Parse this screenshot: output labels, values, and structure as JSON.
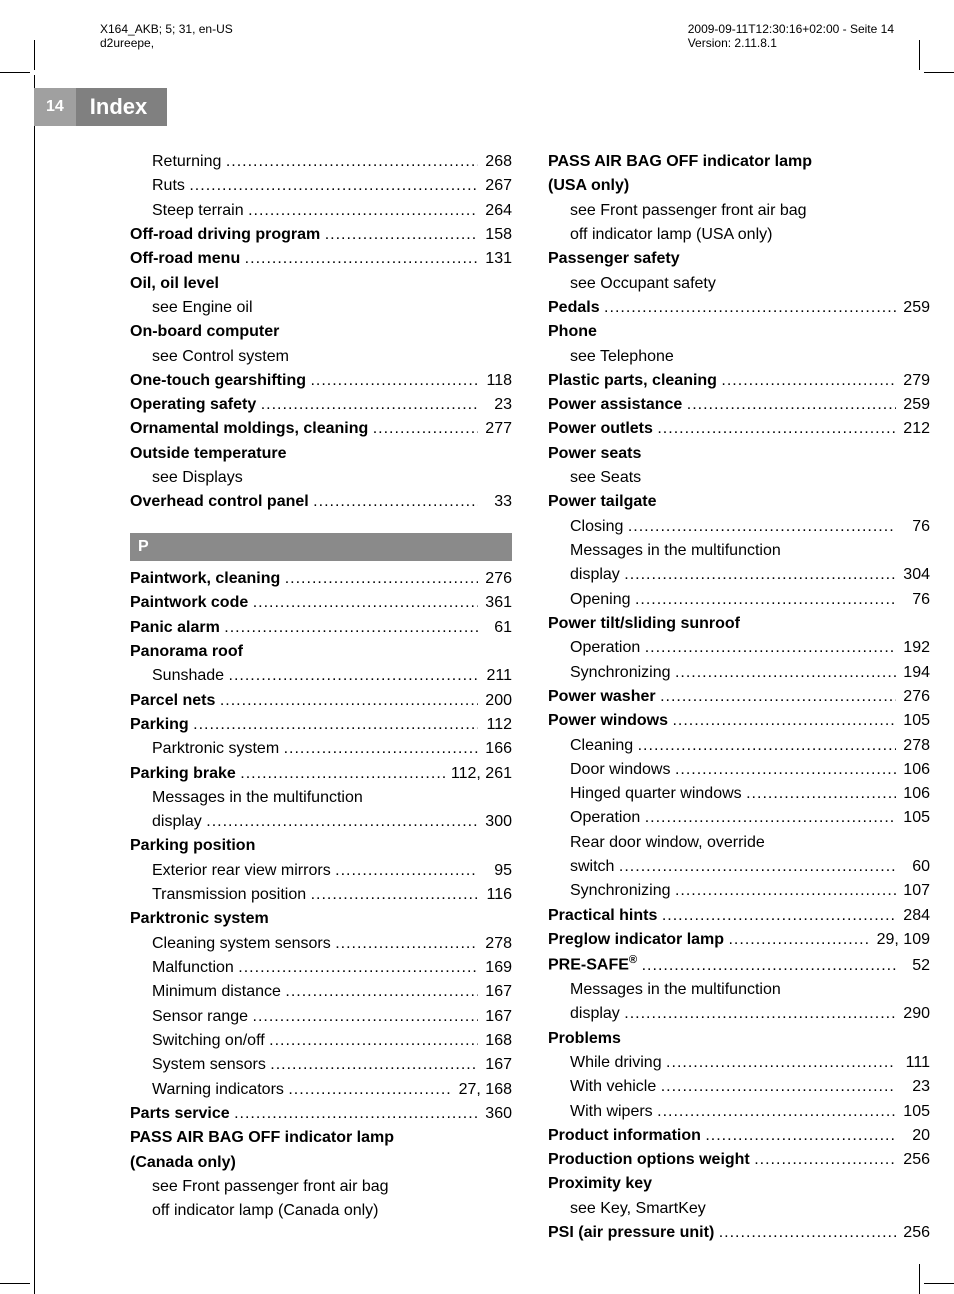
{
  "header": {
    "doc_id_line1": "X164_AKB; 5; 31, en-US",
    "doc_id_line2": "d2ureepe,",
    "timestamp": "2009-09-11T12:30:16+02:00 - Seite 14",
    "version_label": "Version: 2.11.8.1",
    "page_number": "14",
    "title": "Index"
  },
  "left_column": [
    {
      "type": "sub",
      "label": "Returning",
      "page": "268"
    },
    {
      "type": "sub",
      "label": "Ruts",
      "page": "267"
    },
    {
      "type": "sub",
      "label": "Steep terrain",
      "page": "264"
    },
    {
      "type": "top",
      "bold": true,
      "label": "Off-road driving program",
      "page": "158"
    },
    {
      "type": "top",
      "bold": true,
      "label": "Off-road menu",
      "page": "131"
    },
    {
      "type": "top",
      "bold": true,
      "label": "Oil, oil level",
      "nopage": true
    },
    {
      "type": "sub",
      "label": "see Engine oil",
      "nopage": true
    },
    {
      "type": "top",
      "bold": true,
      "label": "On-board computer",
      "nopage": true
    },
    {
      "type": "sub",
      "label": "see Control system",
      "nopage": true
    },
    {
      "type": "top",
      "bold": true,
      "label": "One-touch gearshifting",
      "page": "118"
    },
    {
      "type": "top",
      "bold": true,
      "label": "Operating safety",
      "page": "23"
    },
    {
      "type": "top",
      "bold": true,
      "label": "Ornamental moldings, cleaning",
      "page": "277"
    },
    {
      "type": "top",
      "bold": true,
      "label": "Outside temperature",
      "nopage": true
    },
    {
      "type": "sub",
      "label": "see Displays",
      "nopage": true
    },
    {
      "type": "top",
      "bold": true,
      "label": "Overhead control panel",
      "page": "33"
    },
    {
      "type": "section",
      "label": "P"
    },
    {
      "type": "top",
      "bold": true,
      "label": "Paintwork, cleaning",
      "page": "276"
    },
    {
      "type": "top",
      "bold": true,
      "label": "Paintwork code",
      "page": "361"
    },
    {
      "type": "top",
      "bold": true,
      "label": "Panic alarm",
      "page": "61"
    },
    {
      "type": "top",
      "bold": true,
      "label": "Panorama roof",
      "nopage": true
    },
    {
      "type": "sub",
      "label": "Sunshade",
      "page": "211"
    },
    {
      "type": "top",
      "bold": true,
      "label": "Parcel nets",
      "page": "200"
    },
    {
      "type": "top",
      "bold": true,
      "label": "Parking",
      "page": "112"
    },
    {
      "type": "sub",
      "label": "Parktronic system",
      "page": "166"
    },
    {
      "type": "top",
      "bold": true,
      "label": "Parking brake",
      "page": "112, 261"
    },
    {
      "type": "sub",
      "label": "Messages in the multifunction",
      "nopage": true
    },
    {
      "type": "sub",
      "label": "display",
      "page": "300"
    },
    {
      "type": "top",
      "bold": true,
      "label": "Parking position",
      "nopage": true
    },
    {
      "type": "sub",
      "label": "Exterior rear view mirrors",
      "page": "95"
    },
    {
      "type": "sub",
      "label": "Transmission position",
      "page": "116"
    },
    {
      "type": "top",
      "bold": true,
      "label": "Parktronic system",
      "nopage": true
    },
    {
      "type": "sub",
      "label": "Cleaning system sensors",
      "page": "278"
    },
    {
      "type": "sub",
      "label": "Malfunction",
      "page": "169"
    },
    {
      "type": "sub",
      "label": "Minimum distance",
      "page": "167"
    },
    {
      "type": "sub",
      "label": "Sensor range",
      "page": "167"
    },
    {
      "type": "sub",
      "label": "Switching on/off",
      "page": "168"
    },
    {
      "type": "sub",
      "label": "System sensors",
      "page": "167"
    },
    {
      "type": "sub",
      "label": "Warning indicators",
      "page": "27, 168"
    },
    {
      "type": "top",
      "bold": true,
      "label": "Parts service",
      "page": "360"
    },
    {
      "type": "top",
      "bold": true,
      "label": "PASS AIR BAG OFF indicator lamp",
      "nopage": true
    },
    {
      "type": "top",
      "bold": true,
      "label": "(Canada only)",
      "nopage": true
    },
    {
      "type": "sub",
      "label": "see Front passenger front air bag",
      "nopage": true
    },
    {
      "type": "sub",
      "label": "off indicator lamp (Canada only)",
      "nopage": true
    }
  ],
  "right_column": [
    {
      "type": "top",
      "bold": true,
      "label": "PASS AIR BAG OFF indicator lamp",
      "nopage": true
    },
    {
      "type": "top",
      "bold": true,
      "label": "(USA only)",
      "nopage": true
    },
    {
      "type": "sub",
      "label": "see Front passenger front air bag",
      "nopage": true
    },
    {
      "type": "sub",
      "label": "off indicator lamp (USA only)",
      "nopage": true
    },
    {
      "type": "top",
      "bold": true,
      "label": "Passenger safety",
      "nopage": true
    },
    {
      "type": "sub",
      "label": "see Occupant safety",
      "nopage": true
    },
    {
      "type": "top",
      "bold": true,
      "label": "Pedals",
      "page": "259"
    },
    {
      "type": "top",
      "bold": true,
      "label": "Phone",
      "nopage": true
    },
    {
      "type": "sub",
      "label": "see Telephone",
      "nopage": true
    },
    {
      "type": "top",
      "bold": true,
      "label": "Plastic parts, cleaning",
      "page": "279"
    },
    {
      "type": "top",
      "bold": true,
      "label": "Power assistance",
      "page": "259"
    },
    {
      "type": "top",
      "bold": true,
      "label": "Power outlets",
      "page": "212"
    },
    {
      "type": "top",
      "bold": true,
      "label": "Power seats",
      "nopage": true
    },
    {
      "type": "sub",
      "label": "see Seats",
      "nopage": true
    },
    {
      "type": "top",
      "bold": true,
      "label": "Power tailgate",
      "nopage": true
    },
    {
      "type": "sub",
      "label": "Closing",
      "page": "76"
    },
    {
      "type": "sub",
      "label": "Messages in the multifunction",
      "nopage": true
    },
    {
      "type": "sub",
      "label": "display",
      "page": "304"
    },
    {
      "type": "sub",
      "label": "Opening",
      "page": "76"
    },
    {
      "type": "top",
      "bold": true,
      "label": "Power tilt/sliding sunroof",
      "nopage": true
    },
    {
      "type": "sub",
      "label": "Operation",
      "page": "192"
    },
    {
      "type": "sub",
      "label": "Synchronizing",
      "page": "194"
    },
    {
      "type": "top",
      "bold": true,
      "label": "Power washer",
      "page": "276"
    },
    {
      "type": "top",
      "bold": true,
      "label": "Power windows",
      "page": "105"
    },
    {
      "type": "sub",
      "label": "Cleaning",
      "page": "278"
    },
    {
      "type": "sub",
      "label": "Door windows",
      "page": "106"
    },
    {
      "type": "sub",
      "label": "Hinged quarter windows",
      "page": "106"
    },
    {
      "type": "sub",
      "label": "Operation",
      "page": "105"
    },
    {
      "type": "sub",
      "label": "Rear door window, override",
      "nopage": true
    },
    {
      "type": "sub",
      "label": "switch",
      "page": "60"
    },
    {
      "type": "sub",
      "label": "Synchronizing",
      "page": "107"
    },
    {
      "type": "top",
      "bold": true,
      "label": "Practical hints",
      "page": "284"
    },
    {
      "type": "top",
      "bold": true,
      "label": "Preglow indicator lamp",
      "page": "29, 109"
    },
    {
      "type": "top",
      "bold": true,
      "label_html": "PRE-SAFE<sup>®</sup>",
      "label": "PRE-SAFE®",
      "page": "52"
    },
    {
      "type": "sub",
      "label": "Messages in the multifunction",
      "nopage": true
    },
    {
      "type": "sub",
      "label": "display",
      "page": "290"
    },
    {
      "type": "top",
      "bold": true,
      "label": "Problems",
      "nopage": true
    },
    {
      "type": "sub",
      "label": "While driving",
      "page": "111"
    },
    {
      "type": "sub",
      "label": "With vehicle",
      "page": "23"
    },
    {
      "type": "sub",
      "label": "With wipers",
      "page": "105"
    },
    {
      "type": "top",
      "bold": true,
      "label": "Product information",
      "page": "20"
    },
    {
      "type": "top",
      "bold": true,
      "label": "Production options weight",
      "page": "256"
    },
    {
      "type": "top",
      "bold": true,
      "label": "Proximity key",
      "nopage": true
    },
    {
      "type": "sub",
      "label": "see Key, SmartKey",
      "nopage": true
    },
    {
      "type": "top",
      "bold": true,
      "label": "PSI (air pressure unit)",
      "page": "256"
    }
  ]
}
